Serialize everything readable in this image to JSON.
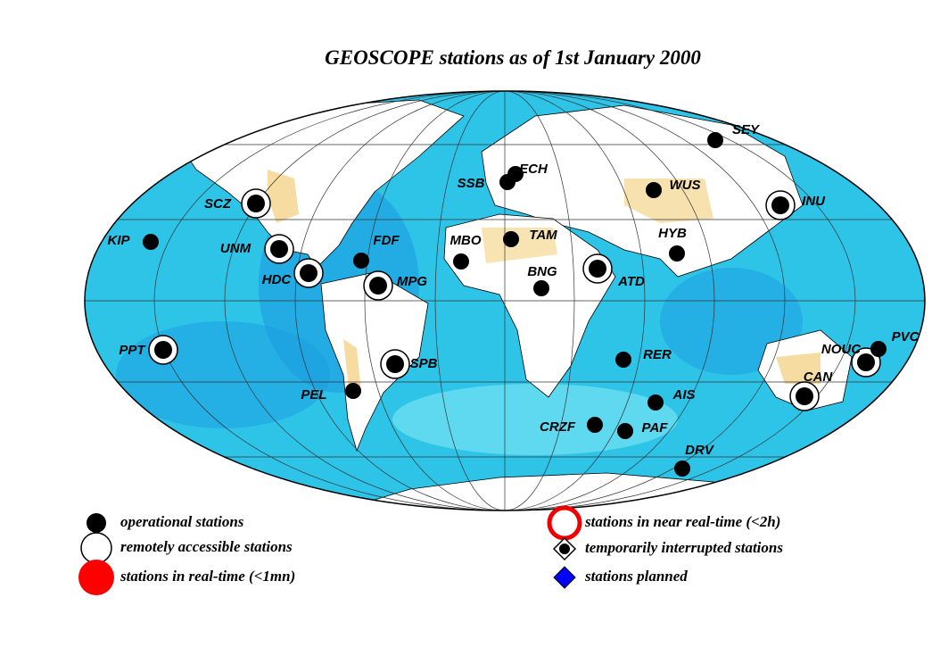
{
  "title": "GEOSCOPE stations as of 1st January 2000",
  "stations": [
    {
      "name": "SEY",
      "remote": false
    },
    {
      "name": "ECH",
      "remote": false
    },
    {
      "name": "SSB",
      "remote": false
    },
    {
      "name": "WUS",
      "remote": false
    },
    {
      "name": "INU",
      "remote": true
    },
    {
      "name": "SCZ",
      "remote": true
    },
    {
      "name": "KIP",
      "remote": false
    },
    {
      "name": "UNM",
      "remote": true
    },
    {
      "name": "FDF",
      "remote": false
    },
    {
      "name": "MBO",
      "remote": false
    },
    {
      "name": "TAM",
      "remote": false
    },
    {
      "name": "HYB",
      "remote": false
    },
    {
      "name": "HDC",
      "remote": true
    },
    {
      "name": "MPG",
      "remote": true
    },
    {
      "name": "BNG",
      "remote": false
    },
    {
      "name": "ATD",
      "remote": true
    },
    {
      "name": "PPT",
      "remote": true
    },
    {
      "name": "SPB",
      "remote": true
    },
    {
      "name": "RER",
      "remote": false
    },
    {
      "name": "PEL",
      "remote": false
    },
    {
      "name": "AIS",
      "remote": false
    },
    {
      "name": "CAN",
      "remote": true
    },
    {
      "name": "NOUC",
      "remote": true
    },
    {
      "name": "PVC",
      "remote": false
    },
    {
      "name": "CRZF",
      "remote": false
    },
    {
      "name": "PAF",
      "remote": false
    },
    {
      "name": "DRV",
      "remote": false
    }
  ],
  "legend": {
    "operational": "operational stations",
    "remote": "remotely accessible stations",
    "realtime": "stations in real-time (<1mn)",
    "near_realtime": "stations in near real-time (<2h)",
    "interrupted": "temporarily interrupted stations",
    "planned": "stations planned"
  }
}
